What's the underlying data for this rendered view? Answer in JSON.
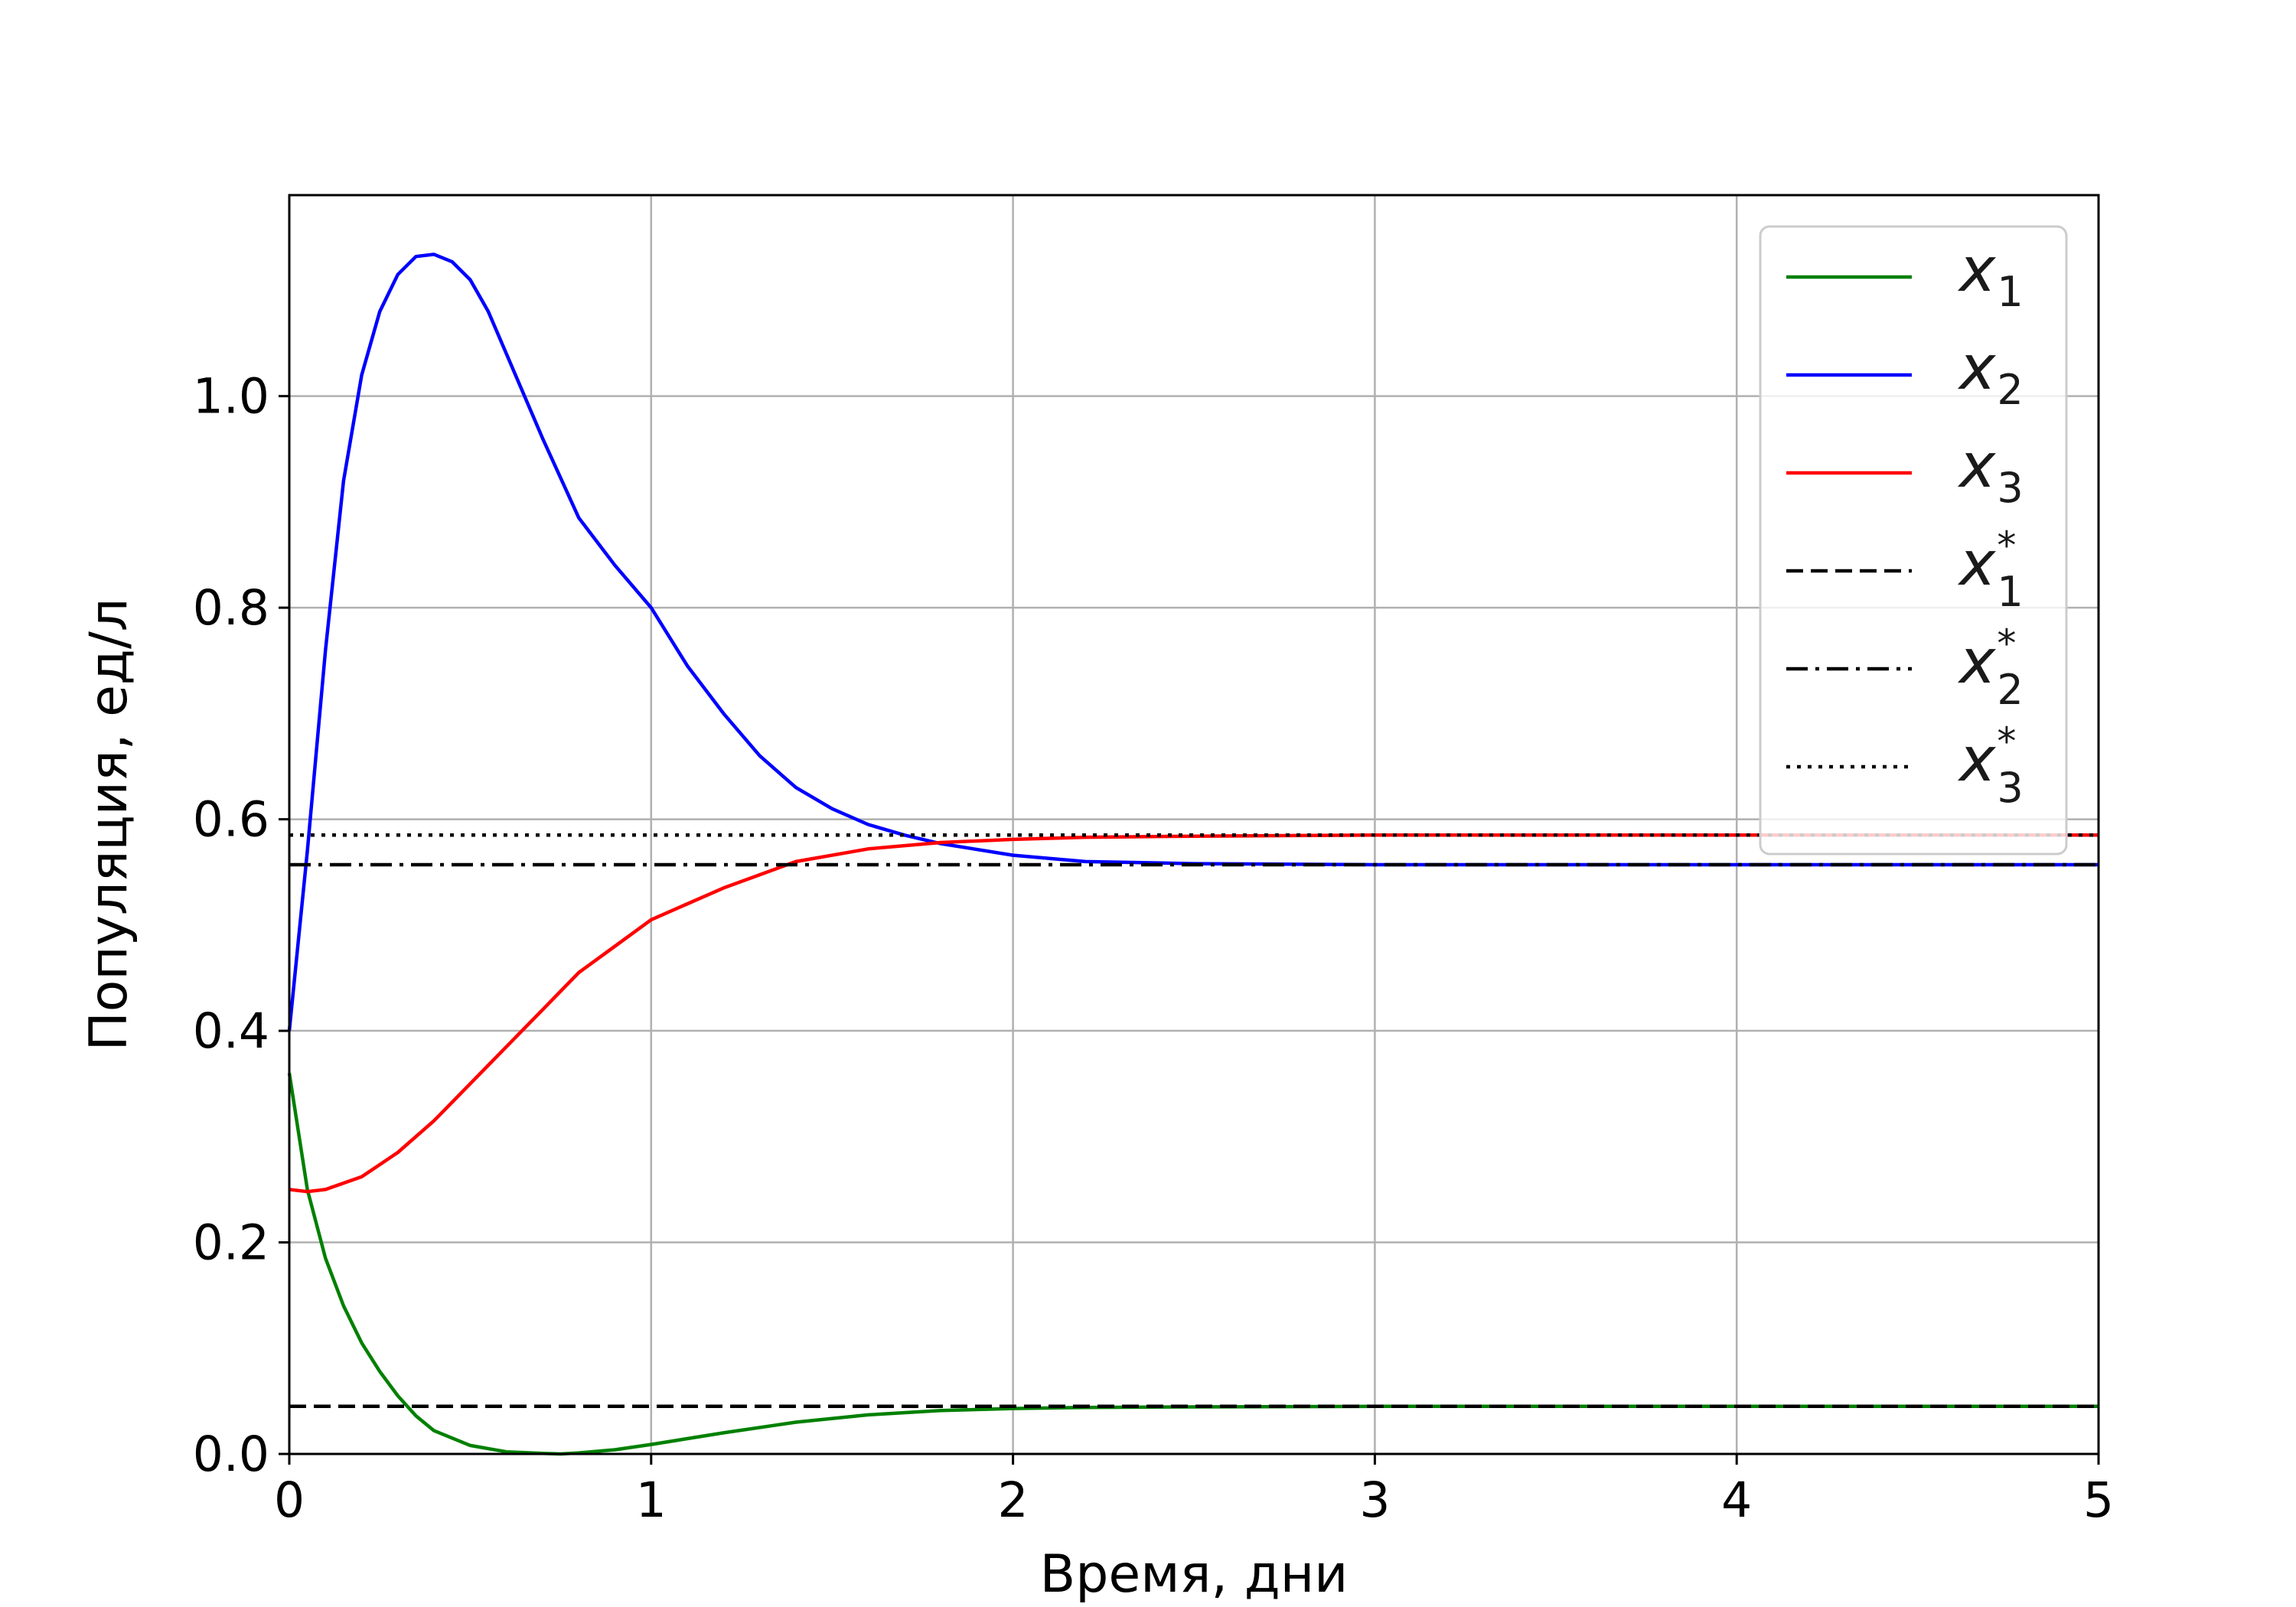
{
  "chart_data": {
    "type": "line",
    "title": "",
    "xlabel": "Время, дни",
    "ylabel": "Популяция, ед/л",
    "xlim": [
      0,
      5
    ],
    "ylim": [
      0,
      1.19
    ],
    "xticks": [
      0,
      1,
      2,
      3,
      4,
      5
    ],
    "xtick_labels": [
      "0",
      "1",
      "2",
      "3",
      "4",
      "5"
    ],
    "yticks": [
      0.0,
      0.2,
      0.4,
      0.6,
      0.8,
      1.0
    ],
    "ytick_labels": [
      "0.0",
      "0.2",
      "0.4",
      "0.6",
      "0.8",
      "1.0"
    ],
    "grid": true,
    "legend_position": "top-right",
    "series": [
      {
        "name": "x1",
        "label_base": "x",
        "label_sub": "1",
        "label_sup": "",
        "color": "#008000",
        "style": "solid",
        "x": [
          0,
          0.05,
          0.1,
          0.15,
          0.2,
          0.25,
          0.3,
          0.35,
          0.4,
          0.5,
          0.6,
          0.7,
          0.75,
          0.8,
          0.9,
          1.0,
          1.2,
          1.4,
          1.6,
          1.8,
          2.0,
          2.2,
          2.5,
          3.0,
          4.0,
          5.0
        ],
        "y": [
          0.36,
          0.25,
          0.185,
          0.14,
          0.105,
          0.078,
          0.055,
          0.036,
          0.022,
          0.008,
          0.002,
          0.0005,
          0.0,
          0.001,
          0.004,
          0.009,
          0.02,
          0.03,
          0.037,
          0.041,
          0.043,
          0.044,
          0.0445,
          0.045,
          0.045,
          0.045
        ]
      },
      {
        "name": "x2",
        "label_base": "x",
        "label_sub": "2",
        "label_sup": "",
        "color": "#0000ff",
        "style": "solid",
        "x": [
          0,
          0.05,
          0.1,
          0.15,
          0.2,
          0.25,
          0.3,
          0.35,
          0.4,
          0.45,
          0.5,
          0.55,
          0.6,
          0.7,
          0.8,
          0.9,
          1.0,
          1.1,
          1.2,
          1.3,
          1.4,
          1.5,
          1.6,
          1.7,
          1.8,
          2.0,
          2.2,
          2.5,
          3.0,
          4.0,
          5.0
        ],
        "y": [
          0.4,
          0.57,
          0.76,
          0.92,
          1.02,
          1.08,
          1.115,
          1.132,
          1.134,
          1.127,
          1.11,
          1.08,
          1.04,
          0.96,
          0.885,
          0.84,
          0.8,
          0.745,
          0.7,
          0.66,
          0.63,
          0.61,
          0.595,
          0.585,
          0.577,
          0.566,
          0.56,
          0.558,
          0.557,
          0.557,
          0.557
        ]
      },
      {
        "name": "x3",
        "label_base": "x",
        "label_sub": "3",
        "label_sup": "",
        "color": "#ff0000",
        "style": "solid",
        "x": [
          0,
          0.05,
          0.1,
          0.2,
          0.3,
          0.4,
          0.5,
          0.6,
          0.7,
          0.8,
          0.9,
          1.0,
          1.2,
          1.4,
          1.6,
          1.8,
          2.0,
          2.2,
          2.5,
          3.0,
          4.0,
          5.0
        ],
        "y": [
          0.25,
          0.248,
          0.25,
          0.262,
          0.285,
          0.315,
          0.35,
          0.385,
          0.42,
          0.455,
          0.48,
          0.505,
          0.535,
          0.56,
          0.572,
          0.578,
          0.581,
          0.583,
          0.584,
          0.585,
          0.585,
          0.585
        ]
      },
      {
        "name": "x1*",
        "label_base": "x",
        "label_sub": "1",
        "label_sup": "*",
        "color": "#000000",
        "style": "dashed",
        "x": [
          0,
          5
        ],
        "y": [
          0.045,
          0.045
        ]
      },
      {
        "name": "x2*",
        "label_base": "x",
        "label_sub": "2",
        "label_sup": "*",
        "color": "#000000",
        "style": "dashdot",
        "x": [
          0,
          5
        ],
        "y": [
          0.557,
          0.557
        ]
      },
      {
        "name": "x3*",
        "label_base": "x",
        "label_sub": "3",
        "label_sup": "*",
        "color": "#000000",
        "style": "dotted",
        "x": [
          0,
          5
        ],
        "y": [
          0.585,
          0.585
        ]
      }
    ]
  }
}
